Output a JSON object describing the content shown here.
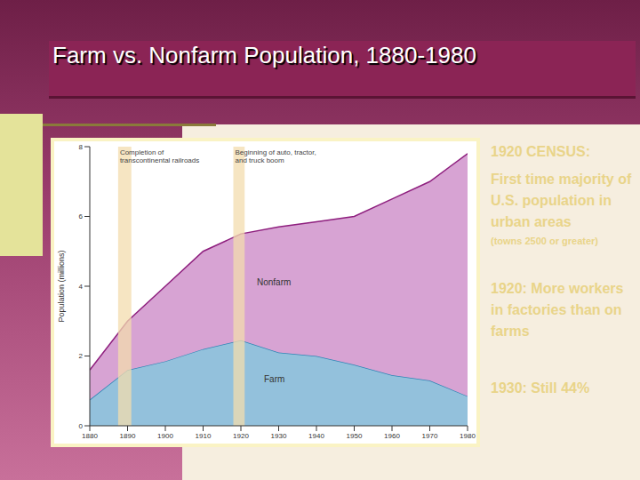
{
  "chart_data": {
    "type": "area",
    "title": "Farm vs. Nonfarm Population, 1880-1980",
    "stacked": true,
    "x": [
      1880,
      1890,
      1900,
      1910,
      1920,
      1930,
      1940,
      1950,
      1960,
      1970,
      1980
    ],
    "series": [
      {
        "name": "Farm",
        "color": "#2e86b5",
        "values": [
          0.75,
          1.6,
          1.85,
          2.2,
          2.45,
          2.1,
          2.0,
          1.75,
          1.45,
          1.3,
          0.85
        ]
      },
      {
        "name": "Nonfarm",
        "color": "#8e1f7e",
        "values": [
          0.85,
          1.4,
          2.15,
          2.8,
          3.05,
          3.6,
          3.85,
          4.25,
          5.05,
          5.7,
          6.95
        ]
      }
    ],
    "y_label": "Population (millions)",
    "xlim": [
      1880,
      1980
    ],
    "xticks": [
      1880,
      1890,
      1900,
      1910,
      1920,
      1930,
      1940,
      1950,
      1960,
      1970,
      1980
    ],
    "ylim": [
      0,
      8
    ],
    "yticks": [
      0,
      2,
      4,
      6,
      8
    ],
    "annotations": [
      {
        "text": [
          "Completion of",
          "transcontinental railroads"
        ],
        "x_start": 1887.5,
        "x_end": 1891
      },
      {
        "text": [
          "Beginning of auto, tractor,",
          "and truck boom"
        ],
        "x_start": 1918,
        "x_end": 1921
      }
    ]
  },
  "side_text": {
    "heading": "1920 CENSUS:",
    "point": "First time majority of U.S. population in urban areas",
    "note": "(towns 2500 or greater)",
    "facts": [
      "1920: More workers in factories than on farms",
      "1930: Still 44%"
    ]
  }
}
